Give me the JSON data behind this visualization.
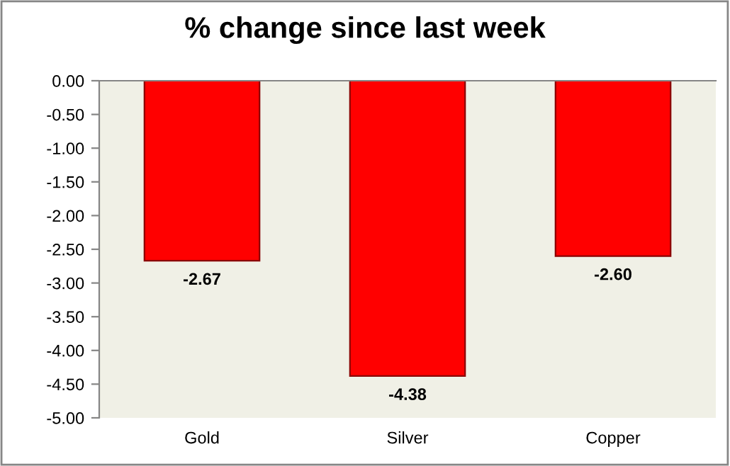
{
  "chart_data": {
    "type": "bar",
    "title": "% change since last week",
    "categories": [
      "Gold",
      "Silver",
      "Copper"
    ],
    "values": [
      -2.67,
      -4.38,
      -2.6
    ],
    "value_labels": [
      "-2.67",
      "-4.38",
      "-2.60"
    ],
    "color": "#ff0000",
    "ylim": [
      -5,
      0
    ],
    "yticks": [
      {
        "value": 0,
        "label": "0.00"
      },
      {
        "value": -0.5,
        "label": "-0.50"
      },
      {
        "value": -1,
        "label": "-1.00"
      },
      {
        "value": -1.5,
        "label": "-1.50"
      },
      {
        "value": -2,
        "label": "-2.00"
      },
      {
        "value": -2.5,
        "label": "-2.50"
      },
      {
        "value": -3,
        "label": "-3.00"
      },
      {
        "value": -3.5,
        "label": "-3.50"
      },
      {
        "value": -4,
        "label": "-4.00"
      },
      {
        "value": -4.5,
        "label": "-4.50"
      },
      {
        "value": -5,
        "label": "-5.00"
      }
    ],
    "grid": false,
    "legend": false
  }
}
